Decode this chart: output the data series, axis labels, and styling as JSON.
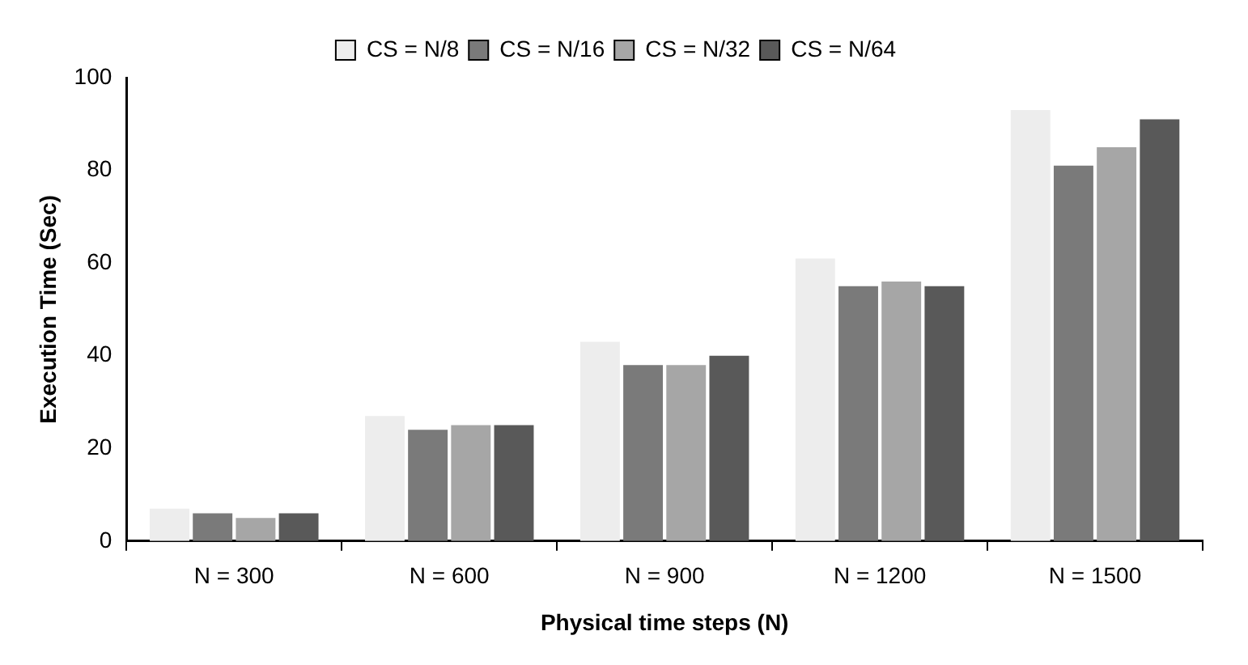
{
  "chart_data": {
    "type": "bar",
    "xlabel": "Physical time steps (N)",
    "ylabel": "Execution Time (Sec)",
    "categories": [
      "N = 300",
      "N = 600",
      "N = 900",
      "N = 1200",
      "N = 1500"
    ],
    "series": [
      {
        "name": "CS = N/8",
        "color": "#ededed",
        "values": [
          7,
          27,
          43,
          61,
          93
        ]
      },
      {
        "name": "CS = N/16",
        "color": "#7a7a7a",
        "values": [
          6,
          24,
          38,
          55,
          81
        ]
      },
      {
        "name": "CS = N/32",
        "color": "#a6a6a6",
        "values": [
          5,
          25,
          38,
          56,
          85
        ]
      },
      {
        "name": "CS = N/64",
        "color": "#595959",
        "values": [
          6,
          25,
          40,
          55,
          91
        ]
      }
    ],
    "ylim": [
      0,
      100
    ],
    "yticks": [
      0,
      20,
      40,
      60,
      80,
      100
    ],
    "grid": false,
    "legend": "top"
  }
}
